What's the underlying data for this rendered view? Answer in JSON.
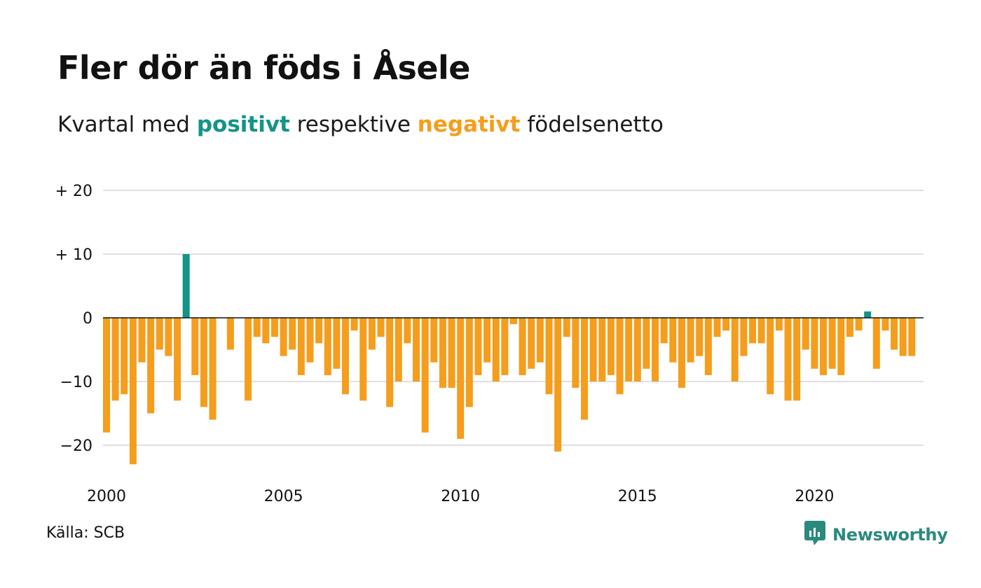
{
  "title": "Fler dör än föds i Åsele",
  "subtitle": {
    "prefix": "Kvartal med ",
    "positive_word": "positivt",
    "middle": " respektive ",
    "negative_word": "negativt",
    "suffix": " födelsenetto"
  },
  "source": "Källa: SCB",
  "brand": {
    "name": "Newsworthy",
    "icon": "newsworthy-logo-icon"
  },
  "colors": {
    "positive": "#139487",
    "negative": "#f59d1c",
    "grid": "#e0e0e0",
    "zero_line": "#111111"
  },
  "chart_data": {
    "type": "bar",
    "x_start": "2000 Q1",
    "frequency": "quarterly",
    "ylim": [
      -25,
      20
    ],
    "y_ticks": [
      {
        "value": 20,
        "label": "+ 20"
      },
      {
        "value": 10,
        "label": "+ 10"
      },
      {
        "value": 0,
        "label": "0"
      },
      {
        "value": -10,
        "label": "−10"
      },
      {
        "value": -20,
        "label": "−20"
      }
    ],
    "x_ticks": [
      "2000",
      "2005",
      "2010",
      "2015",
      "2020"
    ],
    "grid": true,
    "values": [
      -18,
      -13,
      -12,
      -23,
      -7,
      -15,
      -5,
      -6,
      -13,
      10,
      -9,
      -14,
      -16,
      0,
      -5,
      0,
      -13,
      -3,
      -4,
      -3,
      -6,
      -5,
      -9,
      -7,
      -4,
      -9,
      -8,
      -12,
      -2,
      -13,
      -5,
      -3,
      -14,
      -10,
      -4,
      -10,
      -18,
      -7,
      -11,
      -11,
      -19,
      -14,
      -9,
      -7,
      -10,
      -9,
      -1,
      -9,
      -8,
      -7,
      -12,
      -21,
      -3,
      -11,
      -16,
      -10,
      -10,
      -9,
      -12,
      -10,
      -10,
      -8,
      -10,
      -4,
      -7,
      -11,
      -7,
      -6,
      -9,
      -3,
      -2,
      -10,
      -6,
      -4,
      -4,
      -12,
      -2,
      -13,
      -13,
      -5,
      -8,
      -9,
      -8,
      -9,
      -3,
      -2,
      1,
      -8,
      -2,
      -5,
      -6,
      -6
    ]
  }
}
